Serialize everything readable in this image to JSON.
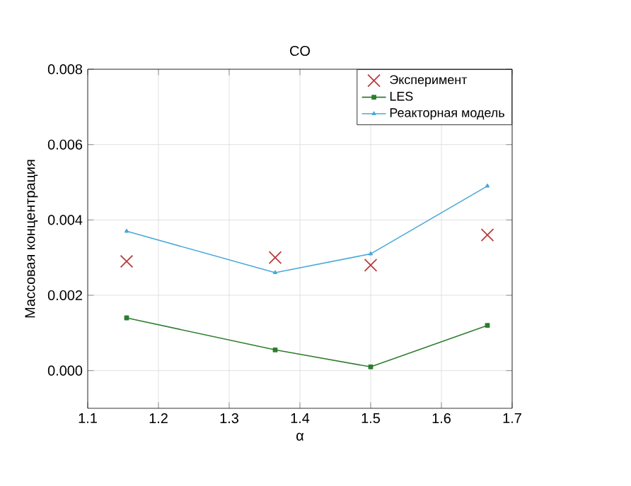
{
  "chart_data": {
    "type": "line",
    "title": "CO",
    "xlabel": "α",
    "ylabel": "Массовая концентрация",
    "x": [
      1.155,
      1.365,
      1.5,
      1.665
    ],
    "series": [
      {
        "name": "Эксперимент",
        "type": "scatter",
        "marker": "cross",
        "color": "#b83c3c",
        "values": [
          0.0029,
          0.003,
          0.0028,
          0.0036
        ]
      },
      {
        "name": "LES",
        "marker": "square",
        "color": "#2e7d2e",
        "values": [
          0.0014,
          0.00055,
          0.0001,
          0.0012
        ]
      },
      {
        "name": "Реакторная модель",
        "marker": "triangle",
        "color": "#4aa8d8",
        "values": [
          0.0037,
          0.0026,
          0.0031,
          0.0049
        ]
      }
    ],
    "xlim": [
      1.1,
      1.7
    ],
    "xticks": [
      1.1,
      1.2,
      1.3,
      1.4,
      1.5,
      1.6,
      1.7
    ],
    "ylim": [
      -0.001,
      0.008
    ],
    "yticks": [
      {
        "value": 0,
        "label": "0.000"
      },
      {
        "value": 0.002,
        "label": "0.002"
      },
      {
        "value": 0.004,
        "label": "0.004"
      },
      {
        "value": 0.006,
        "label": "0.006"
      },
      {
        "value": 0.008,
        "label": "0.008"
      }
    ],
    "grid": true,
    "legend": "top right"
  }
}
